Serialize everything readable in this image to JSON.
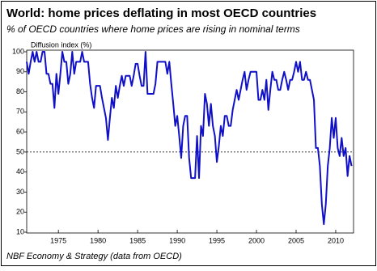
{
  "chart_data": {
    "type": "line",
    "title": "World: home prices deflating in most OECD countries",
    "subtitle": "% of OECD countries where home prices are rising in nominal terms",
    "y_label": "Diffusion index (%)",
    "source": "NBF Economy & Strategy (data from OECD)",
    "x": [
      1971,
      1971.25,
      1971.5,
      1971.75,
      1972,
      1972.25,
      1972.5,
      1972.75,
      1973,
      1973.25,
      1973.5,
      1973.75,
      1974,
      1974.25,
      1974.5,
      1974.75,
      1975,
      1975.25,
      1975.5,
      1975.75,
      1976,
      1976.25,
      1976.5,
      1976.75,
      1977,
      1977.25,
      1977.5,
      1977.75,
      1978,
      1978.25,
      1978.5,
      1978.75,
      1979,
      1979.25,
      1979.5,
      1979.75,
      1980,
      1980.25,
      1980.5,
      1980.75,
      1981,
      1981.25,
      1981.5,
      1981.75,
      1982,
      1982.25,
      1982.5,
      1982.75,
      1983,
      1983.25,
      1983.5,
      1983.75,
      1984,
      1984.25,
      1984.5,
      1984.75,
      1985,
      1985.25,
      1985.5,
      1985.75,
      1986,
      1986.25,
      1986.5,
      1986.75,
      1987,
      1987.25,
      1987.5,
      1987.75,
      1988,
      1988.25,
      1988.5,
      1988.75,
      1989,
      1989.25,
      1989.5,
      1989.75,
      1990,
      1990.25,
      1990.5,
      1990.75,
      1991,
      1991.25,
      1991.5,
      1991.75,
      1992,
      1992.25,
      1992.5,
      1992.75,
      1993,
      1993.25,
      1993.5,
      1993.75,
      1994,
      1994.25,
      1994.5,
      1994.75,
      1995,
      1995.25,
      1995.5,
      1995.75,
      1996,
      1996.25,
      1996.5,
      1996.75,
      1997,
      1997.25,
      1997.5,
      1997.75,
      1998,
      1998.25,
      1998.5,
      1998.75,
      1999,
      1999.25,
      1999.5,
      1999.75,
      2000,
      2000.25,
      2000.5,
      2000.75,
      2001,
      2001.25,
      2001.5,
      2001.75,
      2002,
      2002.25,
      2002.5,
      2002.75,
      2003,
      2003.25,
      2003.5,
      2003.75,
      2004,
      2004.25,
      2004.5,
      2004.75,
      2005,
      2005.25,
      2005.5,
      2005.75,
      2006,
      2006.25,
      2006.5,
      2006.75,
      2007,
      2007.25,
      2007.5,
      2007.75,
      2008,
      2008.25,
      2008.5,
      2008.75,
      2009,
      2009.25,
      2009.5,
      2009.75,
      2010,
      2010.25,
      2010.5,
      2010.75,
      2011,
      2011.25,
      2011.5,
      2011.75,
      2012
    ],
    "series": [
      {
        "color": "#1010c8",
        "values": [
          95,
          89,
          95,
          100,
          95,
          100,
          95,
          95,
          100,
          100,
          89,
          89,
          84,
          84,
          72,
          89,
          79,
          89,
          100,
          95,
          95,
          84,
          89,
          100,
          89,
          95,
          95,
          95,
          100,
          95,
          95,
          95,
          84,
          77,
          72,
          83,
          83,
          83,
          77,
          72,
          67,
          56,
          67,
          77,
          72,
          83,
          77,
          83,
          88,
          83,
          88,
          88,
          88,
          83,
          88,
          94,
          94,
          88,
          83,
          83,
          100,
          79,
          79,
          79,
          79,
          84,
          95,
          95,
          95,
          95,
          95,
          89,
          95,
          84,
          74,
          63,
          68,
          58,
          47,
          63,
          68,
          68,
          47,
          37,
          37,
          37,
          58,
          37,
          63,
          58,
          79,
          74,
          63,
          74,
          63,
          58,
          45,
          53,
          63,
          58,
          68,
          68,
          63,
          63,
          71,
          76,
          81,
          76,
          81,
          86,
          90,
          81,
          86,
          90,
          90,
          90,
          90,
          76,
          76,
          81,
          76,
          86,
          71,
          81,
          90,
          86,
          86,
          81,
          81,
          86,
          90,
          86,
          81,
          86,
          86,
          90,
          95,
          90,
          95,
          86,
          86,
          90,
          86,
          86,
          81,
          76,
          52,
          52,
          43,
          24,
          14,
          24,
          43,
          52,
          67,
          57,
          67,
          52,
          48,
          57,
          48,
          52,
          38,
          48,
          43
        ]
      }
    ],
    "xlim": [
      1971,
      2012.25
    ],
    "xticks": [
      1975,
      1980,
      1985,
      1990,
      1995,
      2000,
      2005,
      2010
    ],
    "ylim": [
      10,
      100
    ],
    "yticks": [
      10,
      20,
      30,
      40,
      50,
      60,
      70,
      80,
      90,
      100
    ],
    "reference_line": 50
  }
}
